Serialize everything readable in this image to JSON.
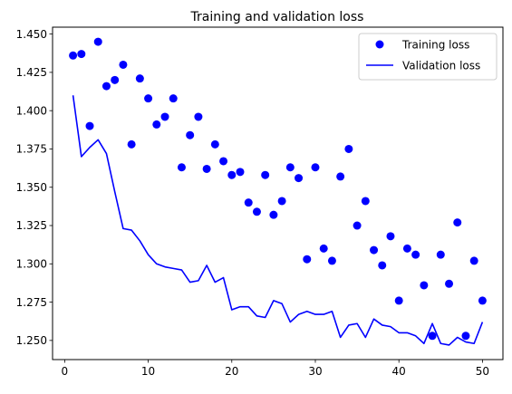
{
  "chart_data": {
    "type": "line",
    "title": "Training and validation loss",
    "xlabel": "",
    "ylabel": "",
    "xlim": [
      -1.45,
      52.45
    ],
    "ylim": [
      1.2375,
      1.4545
    ],
    "xticks": [
      0,
      10,
      20,
      30,
      40,
      50
    ],
    "yticks": [
      1.25,
      1.275,
      1.3,
      1.325,
      1.35,
      1.375,
      1.4,
      1.425,
      1.45
    ],
    "ytick_labels": [
      "1.250",
      "1.275",
      "1.300",
      "1.325",
      "1.350",
      "1.375",
      "1.400",
      "1.425",
      "1.450"
    ],
    "grid": false,
    "legend_position": "top-right",
    "x": [
      1,
      2,
      3,
      4,
      5,
      6,
      7,
      8,
      9,
      10,
      11,
      12,
      13,
      14,
      15,
      16,
      17,
      18,
      19,
      20,
      21,
      22,
      23,
      24,
      25,
      26,
      27,
      28,
      29,
      30,
      31,
      32,
      33,
      34,
      35,
      36,
      37,
      38,
      39,
      40,
      41,
      42,
      43,
      44,
      45,
      46,
      47,
      48,
      49,
      50
    ],
    "series": [
      {
        "name": "Training loss",
        "style": "scatter",
        "color": "#0000ff",
        "values": [
          1.436,
          1.437,
          1.39,
          1.445,
          1.416,
          1.42,
          1.43,
          1.378,
          1.421,
          1.408,
          1.391,
          1.396,
          1.408,
          1.363,
          1.384,
          1.396,
          1.362,
          1.378,
          1.367,
          1.358,
          1.36,
          1.34,
          1.334,
          1.358,
          1.332,
          1.341,
          1.363,
          1.356,
          1.303,
          1.363,
          1.31,
          1.302,
          1.357,
          1.375,
          1.325,
          1.341,
          1.309,
          1.299,
          1.318,
          1.276,
          1.31,
          1.306,
          1.286,
          1.253,
          1.306,
          1.287,
          1.327,
          1.253,
          1.302,
          1.276
        ]
      },
      {
        "name": "Validation loss",
        "style": "line",
        "color": "#0000ff",
        "values": [
          1.41,
          1.37,
          1.376,
          1.381,
          1.372,
          1.347,
          1.323,
          1.322,
          1.315,
          1.306,
          1.3,
          1.298,
          1.297,
          1.296,
          1.288,
          1.289,
          1.299,
          1.288,
          1.291,
          1.27,
          1.272,
          1.272,
          1.266,
          1.265,
          1.276,
          1.274,
          1.262,
          1.267,
          1.269,
          1.267,
          1.267,
          1.269,
          1.252,
          1.26,
          1.261,
          1.252,
          1.264,
          1.26,
          1.259,
          1.255,
          1.255,
          1.253,
          1.248,
          1.261,
          1.248,
          1.247,
          1.252,
          1.249,
          1.248,
          1.262
        ]
      }
    ]
  }
}
